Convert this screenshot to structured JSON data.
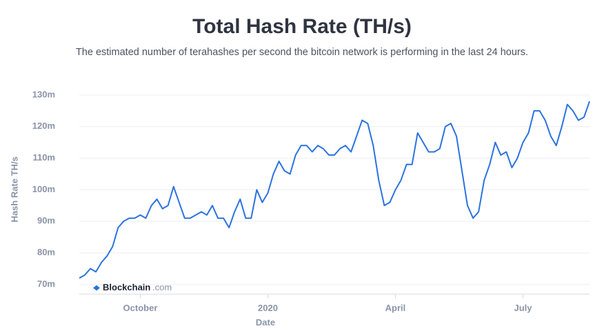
{
  "chart_data": {
    "type": "line",
    "title": "Total Hash Rate (TH/s)",
    "subtitle": "The estimated number of terahashes per second the bitcoin network is performing in the last 24 hours.",
    "y_label": "Hash Rate TH/s",
    "x_label": "Date",
    "watermark": {
      "brand": "Blockchain",
      "suffix": ".com"
    },
    "categories": [
      null,
      null,
      null,
      null,
      null,
      null,
      null,
      null,
      null,
      null,
      null,
      "October",
      null,
      null,
      null,
      null,
      null,
      null,
      null,
      null,
      null,
      null,
      null,
      null,
      null,
      null,
      null,
      null,
      null,
      null,
      null,
      null,
      null,
      null,
      "2020",
      null,
      null,
      null,
      null,
      null,
      null,
      null,
      null,
      null,
      null,
      null,
      null,
      null,
      null,
      null,
      null,
      null,
      null,
      null,
      null,
      null,
      null,
      "April",
      null,
      null,
      null,
      null,
      null,
      null,
      null,
      null,
      null,
      null,
      null,
      null,
      null,
      null,
      null,
      null,
      null,
      null,
      null,
      null,
      null,
      null,
      "July",
      null,
      null,
      null,
      null,
      null,
      null,
      null,
      null,
      null,
      null,
      null,
      null
    ],
    "series": [
      {
        "name": "Hash Rate",
        "color": "#2a72e0",
        "values": [
          72,
          73,
          75,
          74,
          77,
          79,
          82,
          88,
          90,
          91,
          91,
          92,
          91,
          95,
          97,
          94,
          95,
          101,
          96,
          91,
          91,
          92,
          93,
          92,
          95,
          91,
          91,
          88,
          93,
          97,
          91,
          91,
          100,
          96,
          99,
          105,
          109,
          106,
          105,
          111,
          114,
          114,
          112,
          114,
          113,
          111,
          111,
          113,
          114,
          112,
          117,
          122,
          121,
          114,
          103,
          95,
          96,
          100,
          103,
          108,
          108,
          118,
          115,
          112,
          112,
          113,
          120,
          121,
          117,
          106,
          95,
          91,
          93,
          103,
          108,
          115,
          111,
          112,
          107,
          110,
          115,
          118,
          125,
          125,
          122,
          117,
          114,
          120,
          127,
          125,
          122,
          123,
          128
        ]
      }
    ],
    "ylim": [
      67,
      131
    ],
    "yticks": [
      {
        "value": 70,
        "label": "70m"
      },
      {
        "value": 80,
        "label": "80m"
      },
      {
        "value": 90,
        "label": "90m"
      },
      {
        "value": 100,
        "label": "100m"
      },
      {
        "value": 110,
        "label": "110m"
      },
      {
        "value": 120,
        "label": "120m"
      },
      {
        "value": 130,
        "label": "130m"
      }
    ],
    "grid": true
  }
}
